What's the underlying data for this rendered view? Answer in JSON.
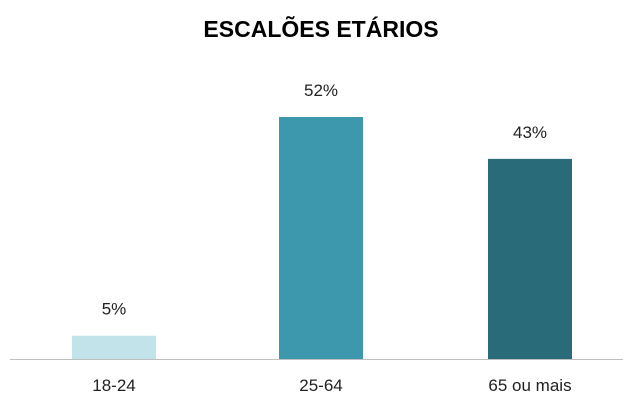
{
  "chart_data": {
    "type": "bar",
    "title": "ESCALÕES ETÁRIOS",
    "categories": [
      "18-24",
      "25-64",
      "65 ou mais"
    ],
    "values": [
      5,
      52,
      43
    ],
    "value_labels": [
      "5%",
      "52%",
      "43%"
    ],
    "unit": "%",
    "colors": [
      "#c3e3ea",
      "#3d98ad",
      "#2a6b7a"
    ],
    "ylim": [
      0,
      52
    ],
    "grid": false,
    "legend": "none"
  }
}
